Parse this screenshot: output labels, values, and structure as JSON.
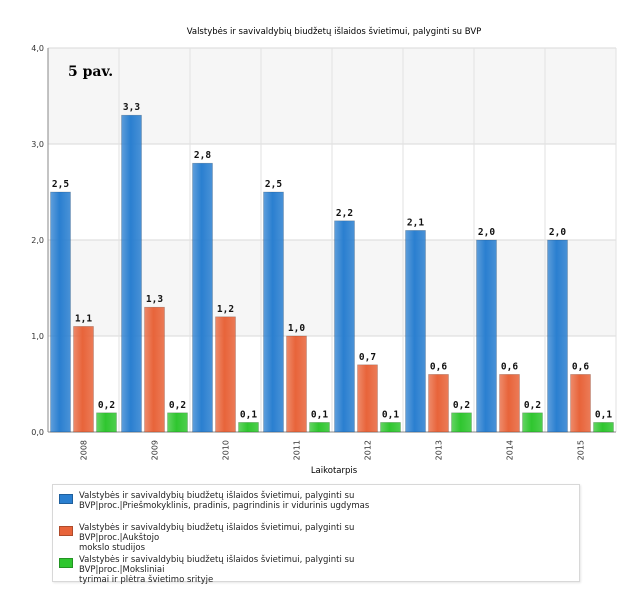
{
  "chart_data": {
    "type": "bar",
    "title": "Valstybės ir savivaldybių biudžetų išlaidos švietimui, palyginti su BVP",
    "xlabel": "Laikotarpis",
    "ylabel": "",
    "annotation": "5 pav.",
    "categories": [
      "2008",
      "2009",
      "2010",
      "2011",
      "2012",
      "2013",
      "2014",
      "2015"
    ],
    "ylim": [
      0,
      4
    ],
    "yticks": [
      "0,0",
      "1,0",
      "2,0",
      "3,0",
      "4,0"
    ],
    "series": [
      {
        "name": "Valstybės ir savivaldybių biudžetų išlaidos švietimui, palyginti su BVP|proc.|Priešmokyklinis, pradinis, pagrindinis ir vidurinis ugdymas",
        "color": "#2a7fd0",
        "values": [
          2.5,
          3.3,
          2.8,
          2.5,
          2.2,
          2.1,
          2.0,
          2.0
        ],
        "labels": [
          "2,5",
          "3,3",
          "2,8",
          "2,5",
          "2,2",
          "2,1",
          "2,0",
          "2,0"
        ]
      },
      {
        "name": "Valstybės ir savivaldybių biudžetų išlaidos švietimui, palyginti su BVP|proc.|Aukštojo mokslo studijos",
        "color": "#e8643a",
        "values": [
          1.1,
          1.3,
          1.2,
          1.0,
          0.7,
          0.6,
          0.6,
          0.6
        ],
        "labels": [
          "1,1",
          "1,3",
          "1,2",
          "1,0",
          "0,7",
          "0,6",
          "0,6",
          "0,6"
        ]
      },
      {
        "name": "Valstybės ir savivaldybių biudžetų išlaidos švietimui, palyginti su BVP|proc.|Moksliniai tyrimai ir plėtra švietimo srityje",
        "color": "#2fc62f",
        "values": [
          0.2,
          0.2,
          0.1,
          0.1,
          0.1,
          0.2,
          0.2,
          0.1
        ],
        "labels": [
          "0,2",
          "0,2",
          "0,1",
          "0,1",
          "0,1",
          "0,2",
          "0,2",
          "0,1"
        ]
      }
    ],
    "grid": true,
    "legend_position": "bottom"
  },
  "legend": {
    "items": [
      {
        "line1": "Valstybės ir savivaldybių biudžetų išlaidos švietimui, palyginti su",
        "line2": "BVP|proc.|Priešmokyklinis, pradinis, pagrindinis ir vidurinis ugdymas"
      },
      {
        "line1": "Valstybės ir savivaldybių biudžetų išlaidos švietimui, palyginti su BVP|proc.|Aukštojo",
        "line2": "mokslo studijos"
      },
      {
        "line1": "Valstybės ir savivaldybių biudžetų išlaidos švietimui, palyginti su BVP|proc.|Moksliniai",
        "line2": "tyrimai ir plėtra švietimo srityje"
      }
    ]
  }
}
